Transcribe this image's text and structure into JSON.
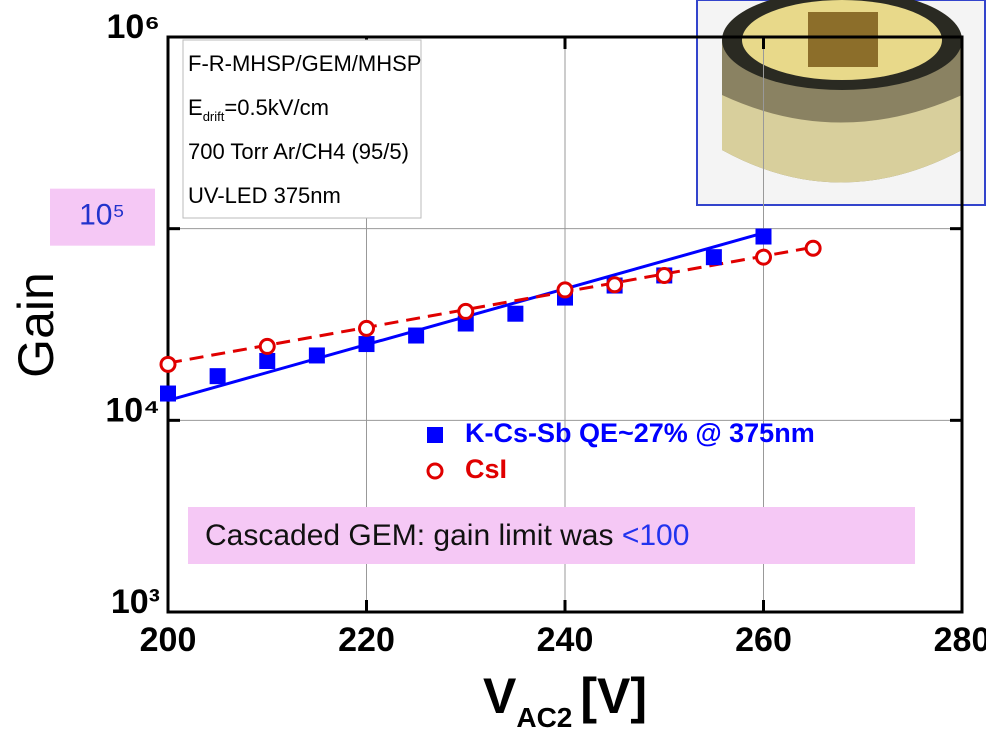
{
  "chart_data": {
    "type": "scatter",
    "title_lines": [
      "F-R-MHSP/GEM/MHSP",
      {
        "main": "E",
        "sub": "drift",
        "rest": "=0.5kV/cm"
      },
      "700 Torr Ar/CH4 (95/5)",
      "UV-LED 375nm"
    ],
    "x_label": {
      "main": "V",
      "sub": "AC2",
      "unit": "[V]"
    },
    "y_label": "Gain",
    "log_y": true,
    "grid": true,
    "xlim": [
      200,
      280
    ],
    "xticks": [
      200,
      220,
      240,
      260,
      280
    ],
    "ylim": [
      1000,
      1000000
    ],
    "yticks": [
      {
        "value": 1000,
        "label": "10³"
      },
      {
        "value": 10000,
        "label": "10⁴"
      },
      {
        "value": 100000,
        "label": "10⁵",
        "highlight": true
      },
      {
        "value": 1000000,
        "label": "10⁶"
      }
    ],
    "series": [
      {
        "name": "K-Cs-Sb QE~27% @ 375nm",
        "color": "#0000ff",
        "marker": "square",
        "x": [
          200,
          205,
          210,
          215,
          220,
          225,
          230,
          235,
          240,
          245,
          250,
          255,
          260
        ],
        "values": [
          13800,
          17000,
          20400,
          21800,
          25000,
          27700,
          32000,
          36000,
          43700,
          50500,
          57000,
          71000,
          91000
        ]
      },
      {
        "name": "CsI",
        "color": "#e00000",
        "marker": "open-circle",
        "x": [
          200,
          210,
          220,
          230,
          240,
          245,
          250,
          260,
          265
        ],
        "values": [
          19600,
          24300,
          30200,
          37000,
          47900,
          51000,
          57000,
          71000,
          79000
        ]
      }
    ],
    "fits": [
      {
        "color": "#0000ff",
        "dash": false,
        "x": [
          200,
          260
        ],
        "values": [
          12700,
          95000
        ]
      },
      {
        "color": "#e00000",
        "dash": true,
        "x": [
          200,
          265
        ],
        "values": [
          19900,
          80000
        ]
      }
    ],
    "annotation": [
      "Cascaded GEM: gain limit was ",
      "<100"
    ]
  }
}
